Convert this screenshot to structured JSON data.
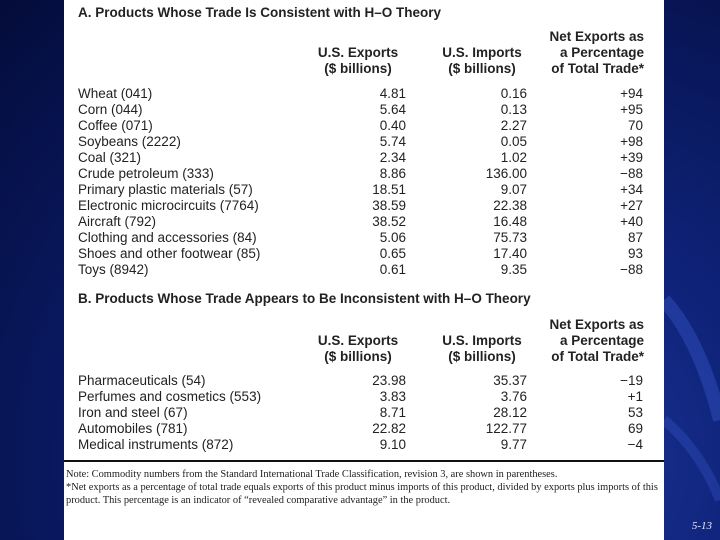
{
  "section_a": {
    "title": "A. Products Whose Trade Is Consistent with H–O Theory",
    "headers": {
      "exports": [
        "U.S. Exports",
        "($ billions)"
      ],
      "imports": [
        "U.S. Imports",
        "($ billions)"
      ],
      "net": [
        "Net Exports as",
        "a Percentage",
        "of Total Trade*"
      ]
    },
    "rows": [
      {
        "product": "Wheat (041)",
        "exports": "4.81",
        "imports": "0.16",
        "net": "+94"
      },
      {
        "product": "Corn (044)",
        "exports": "5.64",
        "imports": "0.13",
        "net": "+95"
      },
      {
        "product": "Coffee (071)",
        "exports": "0.40",
        "imports": "2.27",
        "net": "70"
      },
      {
        "product": "Soybeans (2222)",
        "exports": "5.74",
        "imports": "0.05",
        "net": "+98"
      },
      {
        "product": "Coal (321)",
        "exports": "2.34",
        "imports": "1.02",
        "net": "+39"
      },
      {
        "product": "Crude petroleum (333)",
        "exports": "8.86",
        "imports": "136.00",
        "net": "−88"
      },
      {
        "product": "Primary plastic materials (57)",
        "exports": "18.51",
        "imports": "9.07",
        "net": "+34"
      },
      {
        "product": "Electronic microcircuits (7764)",
        "exports": "38.59",
        "imports": "22.38",
        "net": "+27"
      },
      {
        "product": "Aircraft (792)",
        "exports": "38.52",
        "imports": "16.48",
        "net": "+40"
      },
      {
        "product": "Clothing and accessories (84)",
        "exports": "5.06",
        "imports": "75.73",
        "net": "87"
      },
      {
        "product": "Shoes and other footwear (85)",
        "exports": "0.65",
        "imports": "17.40",
        "net": "93"
      },
      {
        "product": "Toys (8942)",
        "exports": "0.61",
        "imports": "9.35",
        "net": "−88"
      }
    ]
  },
  "section_b": {
    "title": "B. Products Whose Trade Appears to Be Inconsistent with H–O Theory",
    "headers": {
      "exports": [
        "U.S. Exports",
        "($ billions)"
      ],
      "imports": [
        "U.S. Imports",
        "($ billions)"
      ],
      "net": [
        "Net Exports as",
        "a Percentage",
        "of Total Trade*"
      ]
    },
    "rows": [
      {
        "product": "Pharmaceuticals (54)",
        "exports": "23.98",
        "imports": "35.37",
        "net": "−19"
      },
      {
        "product": "Perfumes and cosmetics (553)",
        "exports": "3.83",
        "imports": "3.76",
        "net": "+1"
      },
      {
        "product": "Iron and steel (67)",
        "exports": "8.71",
        "imports": "28.12",
        "net": "53"
      },
      {
        "product": "Automobiles (781)",
        "exports": "22.82",
        "imports": "122.77",
        "net": "69"
      },
      {
        "product": "Medical instruments (872)",
        "exports": "9.10",
        "imports": "9.77",
        "net": "−4"
      }
    ]
  },
  "notes": {
    "note1": "Note: Commodity numbers from the Standard International Trade Classification, revision 3, are shown in parentheses.",
    "note2": "*Net exports as a percentage of total trade equals exports of this product minus imports of this product, divided by exports plus imports of this product. This percentage is an indicator of “revealed comparative advantage” in the product."
  },
  "slide_number": "5-13"
}
